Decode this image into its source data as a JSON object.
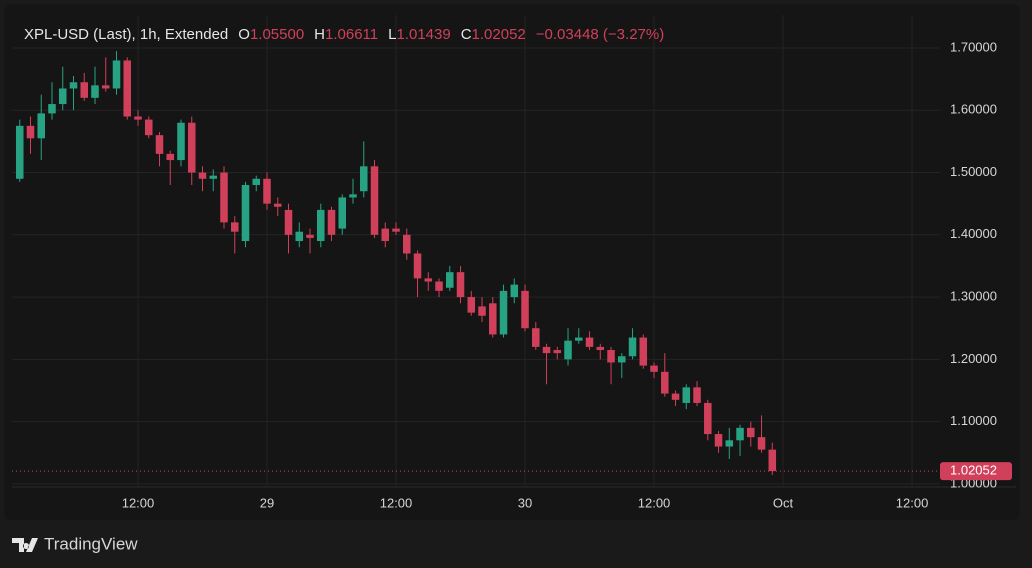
{
  "chart_data": {
    "type": "candlestick",
    "header": {
      "symbol": "XPL-USD (Last), 1h, Extended",
      "open_label": "O",
      "open": "1.05500",
      "high_label": "H",
      "high": "1.06611",
      "low_label": "L",
      "low": "1.01439",
      "close_label": "C",
      "close": "1.02052",
      "change": "−0.03448 (−3.27%)"
    },
    "x": [
      0,
      1,
      2,
      3,
      4,
      5,
      6,
      7,
      8,
      9,
      10,
      11,
      12,
      13,
      14,
      15,
      16,
      17,
      18,
      19,
      20,
      21,
      22,
      23,
      24,
      25,
      26,
      27,
      28,
      29,
      30,
      31,
      32,
      33,
      34,
      35,
      36,
      37,
      38,
      39,
      40,
      41,
      42,
      43,
      44,
      45,
      46,
      47,
      48,
      49,
      50,
      51,
      52,
      53,
      54,
      55,
      56,
      57,
      58,
      59,
      60,
      61,
      62,
      63,
      64,
      65,
      66,
      67,
      68,
      69,
      70
    ],
    "open": [
      1.49,
      1.575,
      1.555,
      1.595,
      1.61,
      1.635,
      1.645,
      1.62,
      1.64,
      1.635,
      1.68,
      1.59,
      1.585,
      1.56,
      1.53,
      1.52,
      1.58,
      1.5,
      1.49,
      1.5,
      1.42,
      1.39,
      1.48,
      1.49,
      1.45,
      1.44,
      1.39,
      1.4,
      1.39,
      1.44,
      1.41,
      1.46,
      1.47,
      1.51,
      1.41,
      1.41,
      1.4,
      1.37,
      1.33,
      1.325,
      1.315,
      1.34,
      1.3,
      1.285,
      1.29,
      1.24,
      1.3,
      1.31,
      1.25,
      1.22,
      1.215,
      1.2,
      1.23,
      1.235,
      1.22,
      1.215,
      1.195,
      1.205,
      1.235,
      1.19,
      1.18,
      1.145,
      1.13,
      1.155,
      1.13,
      1.08,
      1.06,
      1.07,
      1.09,
      1.075,
      1.055
    ],
    "high": [
      1.585,
      1.59,
      1.625,
      1.645,
      1.67,
      1.655,
      1.66,
      1.67,
      1.685,
      1.695,
      1.685,
      1.6,
      1.59,
      1.565,
      1.535,
      1.585,
      1.59,
      1.51,
      1.505,
      1.51,
      1.43,
      1.485,
      1.495,
      1.5,
      1.46,
      1.45,
      1.42,
      1.41,
      1.45,
      1.445,
      1.465,
      1.49,
      1.55,
      1.52,
      1.42,
      1.42,
      1.41,
      1.375,
      1.34,
      1.33,
      1.35,
      1.35,
      1.31,
      1.3,
      1.3,
      1.32,
      1.33,
      1.32,
      1.26,
      1.225,
      1.22,
      1.25,
      1.25,
      1.245,
      1.225,
      1.22,
      1.21,
      1.25,
      1.24,
      1.195,
      1.21,
      1.15,
      1.16,
      1.165,
      1.135,
      1.085,
      1.09,
      1.095,
      1.1,
      1.11,
      1.06611
    ],
    "low": [
      1.485,
      1.53,
      1.52,
      1.585,
      1.6,
      1.6,
      1.615,
      1.61,
      1.63,
      1.625,
      1.585,
      1.575,
      1.555,
      1.51,
      1.48,
      1.51,
      1.48,
      1.47,
      1.47,
      1.41,
      1.37,
      1.38,
      1.47,
      1.44,
      1.43,
      1.37,
      1.38,
      1.37,
      1.38,
      1.39,
      1.4,
      1.45,
      1.46,
      1.395,
      1.38,
      1.4,
      1.36,
      1.3,
      1.31,
      1.3,
      1.31,
      1.29,
      1.27,
      1.26,
      1.235,
      1.235,
      1.29,
      1.245,
      1.215,
      1.16,
      1.2,
      1.19,
      1.225,
      1.215,
      1.2,
      1.16,
      1.17,
      1.2,
      1.185,
      1.17,
      1.14,
      1.125,
      1.12,
      1.125,
      1.07,
      1.05,
      1.04,
      1.045,
      1.06,
      1.05,
      1.01439
    ],
    "close": [
      1.575,
      1.555,
      1.595,
      1.61,
      1.635,
      1.645,
      1.62,
      1.64,
      1.635,
      1.68,
      1.59,
      1.585,
      1.56,
      1.53,
      1.52,
      1.58,
      1.5,
      1.49,
      1.495,
      1.42,
      1.405,
      1.48,
      1.49,
      1.45,
      1.445,
      1.4,
      1.405,
      1.395,
      1.44,
      1.4,
      1.46,
      1.465,
      1.51,
      1.4,
      1.39,
      1.405,
      1.37,
      1.33,
      1.325,
      1.31,
      1.34,
      1.3,
      1.275,
      1.27,
      1.24,
      1.31,
      1.32,
      1.25,
      1.22,
      1.21,
      1.21,
      1.23,
      1.235,
      1.22,
      1.215,
      1.195,
      1.205,
      1.235,
      1.19,
      1.18,
      1.145,
      1.135,
      1.155,
      1.13,
      1.08,
      1.06,
      1.07,
      1.09,
      1.075,
      1.055,
      1.02052
    ],
    "up_color": "#27a384",
    "down_color": "#d0405a",
    "xlim": [
      -0.72,
      85.6
    ],
    "xticks": [
      {
        "value": 11,
        "label": "12:00"
      },
      {
        "value": 23,
        "label": "29"
      },
      {
        "value": 35,
        "label": "12:00"
      },
      {
        "value": 47,
        "label": "30"
      },
      {
        "value": 59,
        "label": "12:00"
      },
      {
        "value": 71,
        "label": "Oct"
      },
      {
        "value": 83,
        "label": "12:00"
      }
    ],
    "ylim": [
      0.995,
      1.753
    ],
    "yticks": [
      {
        "value": 1.0,
        "label": "1.00000"
      },
      {
        "value": 1.1,
        "label": "1.10000"
      },
      {
        "value": 1.2,
        "label": "1.20000"
      },
      {
        "value": 1.3,
        "label": "1.30000"
      },
      {
        "value": 1.4,
        "label": "1.40000"
      },
      {
        "value": 1.5,
        "label": "1.50000"
      },
      {
        "value": 1.6,
        "label": "1.60000"
      },
      {
        "value": 1.7,
        "label": "1.70000"
      }
    ],
    "grid": true,
    "last_price": {
      "value": 1.02052,
      "label": "1.02052"
    },
    "watermark": "TradingView"
  }
}
